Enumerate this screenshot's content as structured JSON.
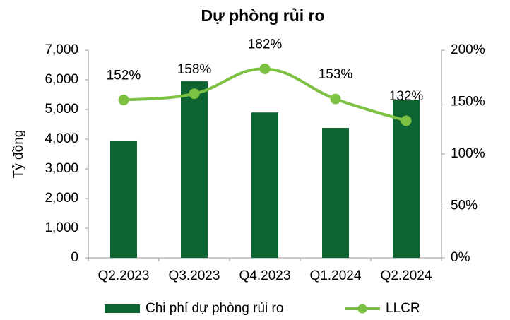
{
  "chart_data": {
    "type": "bar-line",
    "title": "Dự phòng rủi ro",
    "ylabel": "Tỷ đồng",
    "categories": [
      "Q2.2023",
      "Q3.2023",
      "Q4.2023",
      "Q1.2024",
      "Q2.2024"
    ],
    "series": [
      {
        "name": "Chi phí dự phòng rủi ro",
        "type": "bar",
        "color": "#0d6430",
        "values": [
          3930,
          5950,
          4900,
          4380,
          5330
        ]
      },
      {
        "name": "LLCR",
        "type": "line",
        "axis": "y2",
        "color": "#7cc142",
        "values": [
          152,
          158,
          182,
          153,
          132
        ],
        "value_labels": [
          "152%",
          "158%",
          "182%",
          "153%",
          "132%"
        ]
      }
    ],
    "ylim": [
      0,
      7000
    ],
    "yticks": [
      0,
      {
        "value": 1000,
        "label": "1,000"
      },
      {
        "value": 2000,
        "label": "2,000"
      },
      {
        "value": 3000,
        "label": "3,000"
      },
      {
        "value": 4000,
        "label": "4,000"
      },
      {
        "value": 5000,
        "label": "5,000"
      },
      {
        "value": 6000,
        "label": "6,000"
      },
      {
        "value": 7000,
        "label": "7,000"
      }
    ],
    "y2lim": [
      0,
      200
    ],
    "y2ticks": [
      {
        "value": 0,
        "label": "0%"
      },
      {
        "value": 50,
        "label": "50%"
      },
      {
        "value": 100,
        "label": "100%"
      },
      {
        "value": 150,
        "label": "150%"
      },
      {
        "value": 200,
        "label": "200%"
      }
    ],
    "legend": "bottom"
  }
}
